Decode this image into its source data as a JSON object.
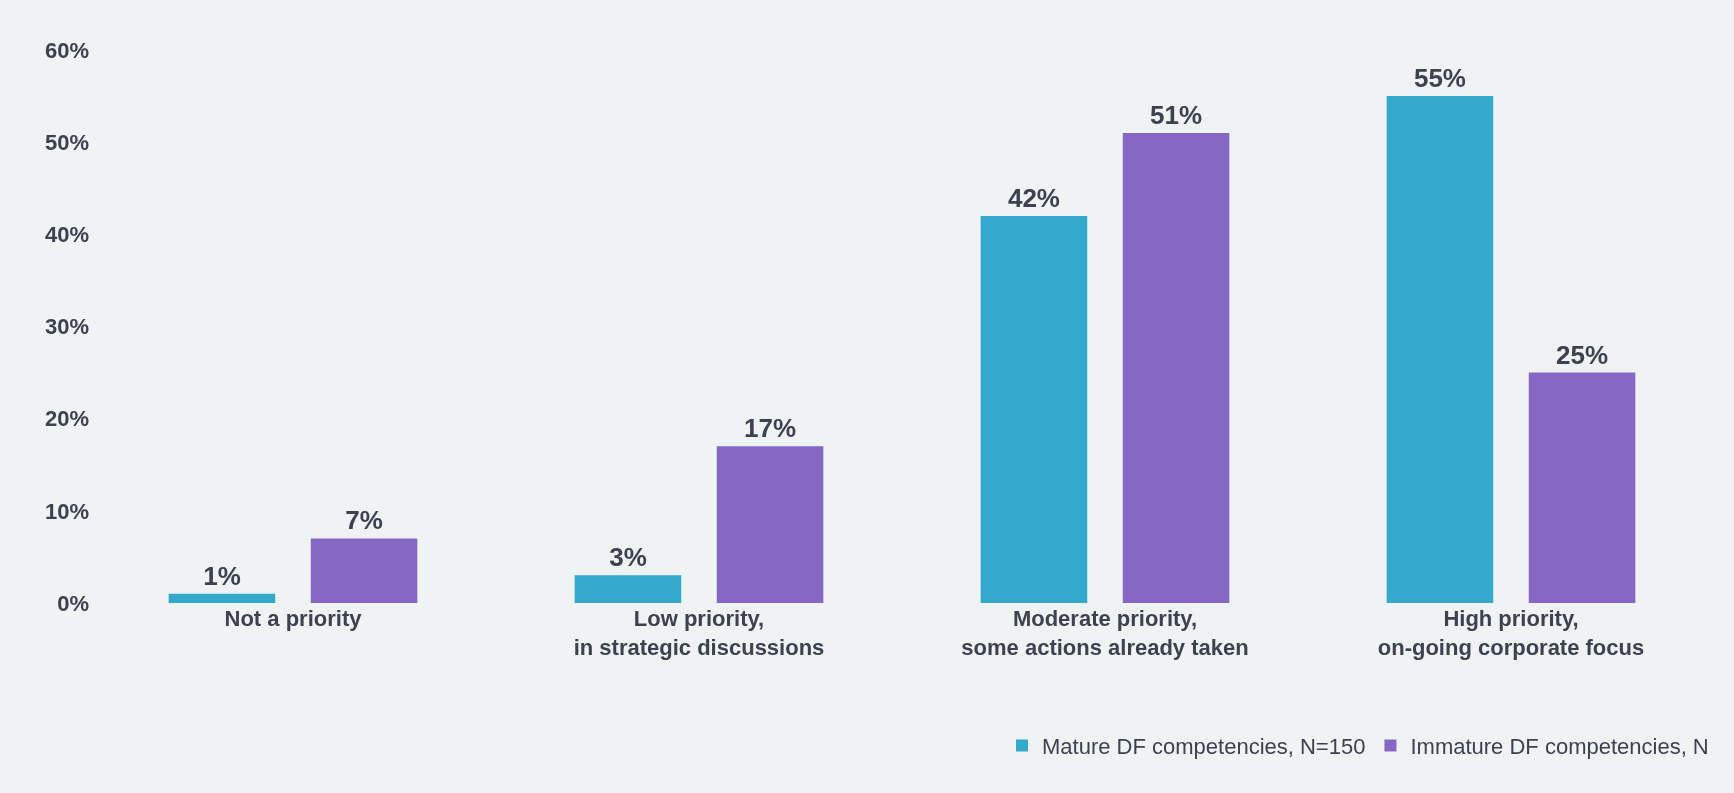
{
  "chart_data": {
    "type": "bar",
    "categories": [
      "Not a priority",
      "Low priority, in strategic discussions",
      "Moderate priority, some actions already taken",
      "High priority, on-going corporate focus"
    ],
    "series": [
      {
        "name": "Mature DF competencies, N=150",
        "color": "#33aacc",
        "values": [
          1,
          3,
          42,
          55
        ],
        "value_labels": [
          "1%",
          "3%",
          "42%",
          "55%"
        ]
      },
      {
        "name": "Immature DF competencies, N",
        "color": "#8668c4",
        "values": [
          7,
          17,
          51,
          25
        ],
        "value_labels": [
          "7%",
          "17%",
          "51%",
          "25%"
        ]
      }
    ],
    "ylim": [
      0,
      60
    ],
    "yticks": [
      {
        "value": 0,
        "label": "0%"
      },
      {
        "value": 10,
        "label": "10%"
      },
      {
        "value": 20,
        "label": "20%"
      },
      {
        "value": 30,
        "label": "30%"
      },
      {
        "value": 40,
        "label": "40%"
      },
      {
        "value": 50,
        "label": "50%"
      },
      {
        "value": 60,
        "label": "60%"
      }
    ],
    "grid": false,
    "legend": "bottom right"
  }
}
